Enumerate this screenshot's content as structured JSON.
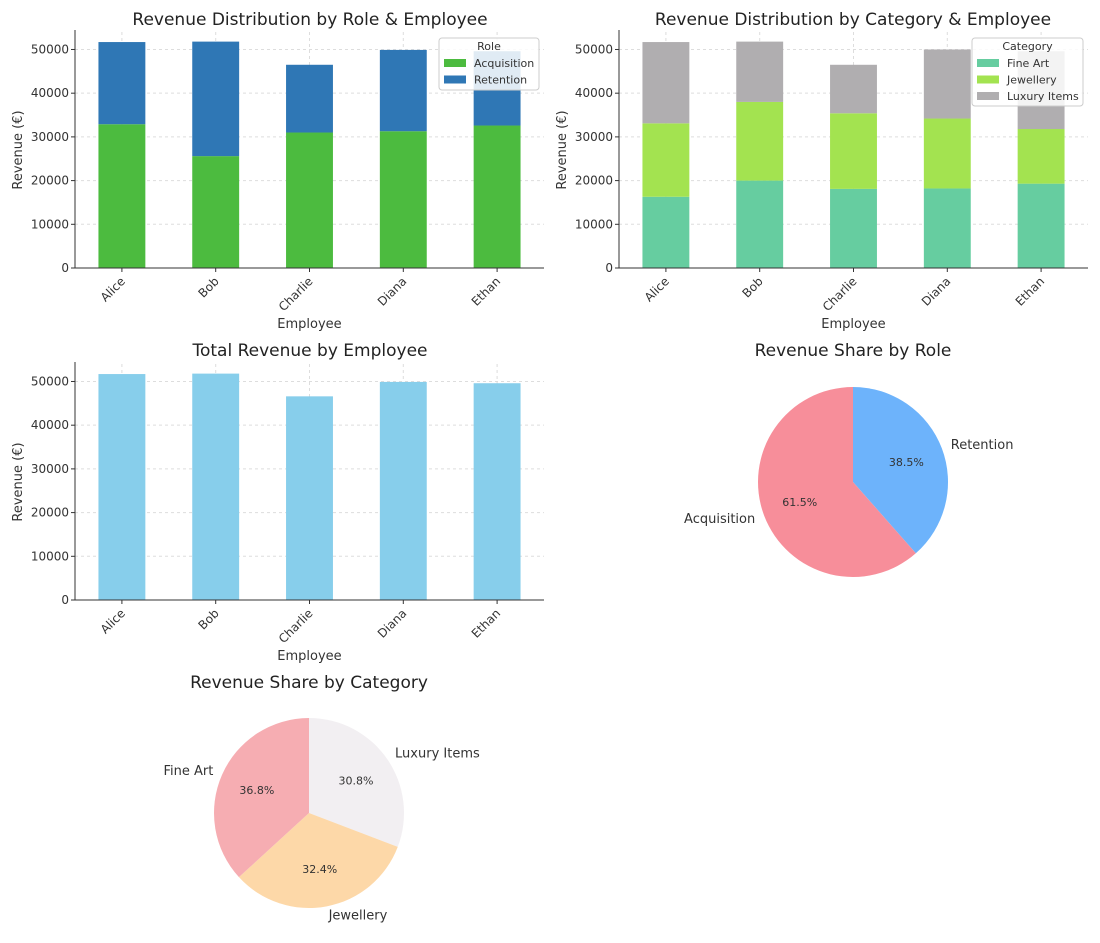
{
  "chart_data": [
    {
      "type": "bar",
      "stacked": true,
      "title": "Revenue Distribution by Role & Employee",
      "xlabel": "Employee",
      "ylabel": "Revenue (€)",
      "categories": [
        "Alice",
        "Bob",
        "Charlie",
        "Diana",
        "Ethan"
      ],
      "ylim": [
        0,
        54000
      ],
      "yticks": [
        0,
        10000,
        20000,
        30000,
        40000,
        50000
      ],
      "grid": true,
      "legend": {
        "title": "Role",
        "placement": "top-right"
      },
      "series": [
        {
          "name": "Acquisition",
          "color": "#4cbb3f",
          "values": [
            32900,
            25600,
            31000,
            31300,
            32600
          ]
        },
        {
          "name": "Retention",
          "color": "#2f77b5",
          "values": [
            18800,
            26200,
            15500,
            18600,
            17000
          ]
        }
      ]
    },
    {
      "type": "bar",
      "stacked": true,
      "title": "Revenue Distribution by Category & Employee",
      "xlabel": "Employee",
      "ylabel": "Revenue (€)",
      "categories": [
        "Alice",
        "Bob",
        "Charlie",
        "Diana",
        "Ethan"
      ],
      "ylim": [
        0,
        54000
      ],
      "yticks": [
        0,
        10000,
        20000,
        30000,
        40000,
        50000
      ],
      "grid": true,
      "legend": {
        "title": "Category",
        "placement": "top-right"
      },
      "series": [
        {
          "name": "Fine Art",
          "color": "#66cda0",
          "values": [
            16300,
            20000,
            18100,
            18200,
            19300
          ]
        },
        {
          "name": "Jewellery",
          "color": "#a3e350",
          "values": [
            16800,
            18000,
            17300,
            16000,
            12500
          ]
        },
        {
          "name": "Luxury Items",
          "color": "#b0aeb0",
          "values": [
            18600,
            13800,
            11100,
            15800,
            17800
          ]
        }
      ]
    },
    {
      "type": "bar",
      "title": "Total Revenue by Employee",
      "xlabel": "Employee",
      "ylabel": "Revenue (€)",
      "categories": [
        "Alice",
        "Bob",
        "Charlie",
        "Diana",
        "Ethan"
      ],
      "ylim": [
        0,
        54000
      ],
      "yticks": [
        0,
        10000,
        20000,
        30000,
        40000,
        50000
      ],
      "grid": true,
      "series": [
        {
          "color": "#87ceeb",
          "values": [
            51700,
            51800,
            46600,
            49900,
            49600
          ]
        }
      ]
    },
    {
      "type": "pie",
      "title": "Revenue Share by Role",
      "start_angle": 90,
      "direction": "clockwise",
      "slices": [
        {
          "label": "Retention",
          "value": 38.5,
          "pct_label": "38.5%",
          "color": "#6db3fb"
        },
        {
          "label": "Acquisition",
          "value": 61.5,
          "pct_label": "61.5%",
          "color": "#f78e9a"
        }
      ]
    },
    {
      "type": "pie",
      "title": "Revenue Share by Category",
      "start_angle": 90,
      "direction": "clockwise",
      "slices": [
        {
          "label": "Luxury Items",
          "value": 30.8,
          "pct_label": "30.8%",
          "color": "#f2eff2"
        },
        {
          "label": "Jewellery",
          "value": 32.4,
          "pct_label": "32.4%",
          "color": "#fdd8a8"
        },
        {
          "label": "Fine Art",
          "value": 36.8,
          "pct_label": "36.8%",
          "color": "#f6adb2"
        }
      ]
    }
  ]
}
